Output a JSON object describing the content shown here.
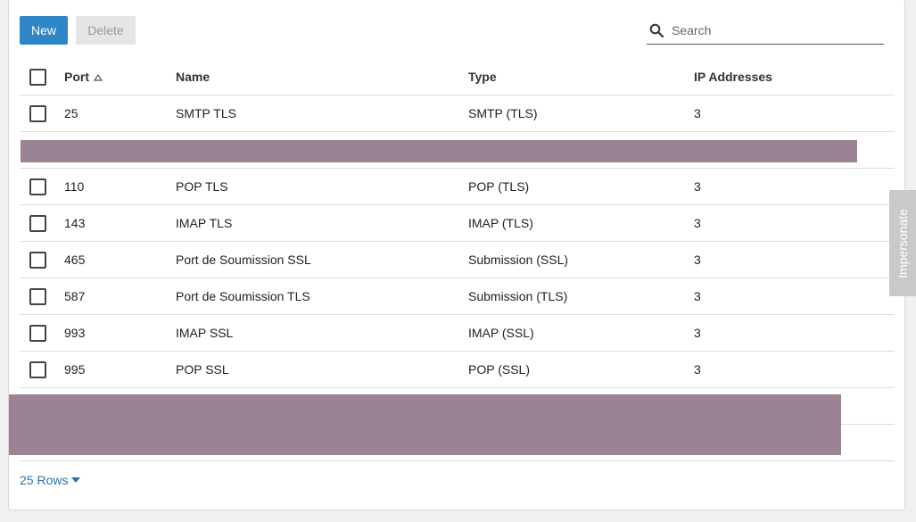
{
  "toolbar": {
    "new_label": "New",
    "delete_label": "Delete"
  },
  "search": {
    "placeholder": "Search",
    "icon": "search-icon"
  },
  "table": {
    "columns": [
      "Port",
      "Name",
      "Type",
      "IP Addresses"
    ],
    "sort": {
      "column": "Port",
      "direction": "ascending"
    },
    "rows": [
      {
        "port": "25",
        "name": "SMTP TLS",
        "type": "SMTP (TLS)",
        "ip": "3"
      },
      {
        "port": "110",
        "name": "POP TLS",
        "type": "POP (TLS)",
        "ip": "3"
      },
      {
        "port": "143",
        "name": "IMAP TLS",
        "type": "IMAP (TLS)",
        "ip": "3"
      },
      {
        "port": "465",
        "name": "Port de Soumission SSL",
        "type": "Submission (SSL)",
        "ip": "3"
      },
      {
        "port": "587",
        "name": "Port de Soumission TLS",
        "type": "Submission (TLS)",
        "ip": "3"
      },
      {
        "port": "993",
        "name": "IMAP SSL",
        "type": "IMAP (SSL)",
        "ip": "3"
      },
      {
        "port": "995",
        "name": "POP SSL",
        "type": "POP (SSL)",
        "ip": "3"
      }
    ]
  },
  "footer": {
    "rows_label": "25 Rows"
  },
  "side_tab": {
    "label": "Impersonate"
  },
  "colors": {
    "accent": "#2f86c6",
    "link": "#2b74b3",
    "redaction": "#9a8493"
  }
}
